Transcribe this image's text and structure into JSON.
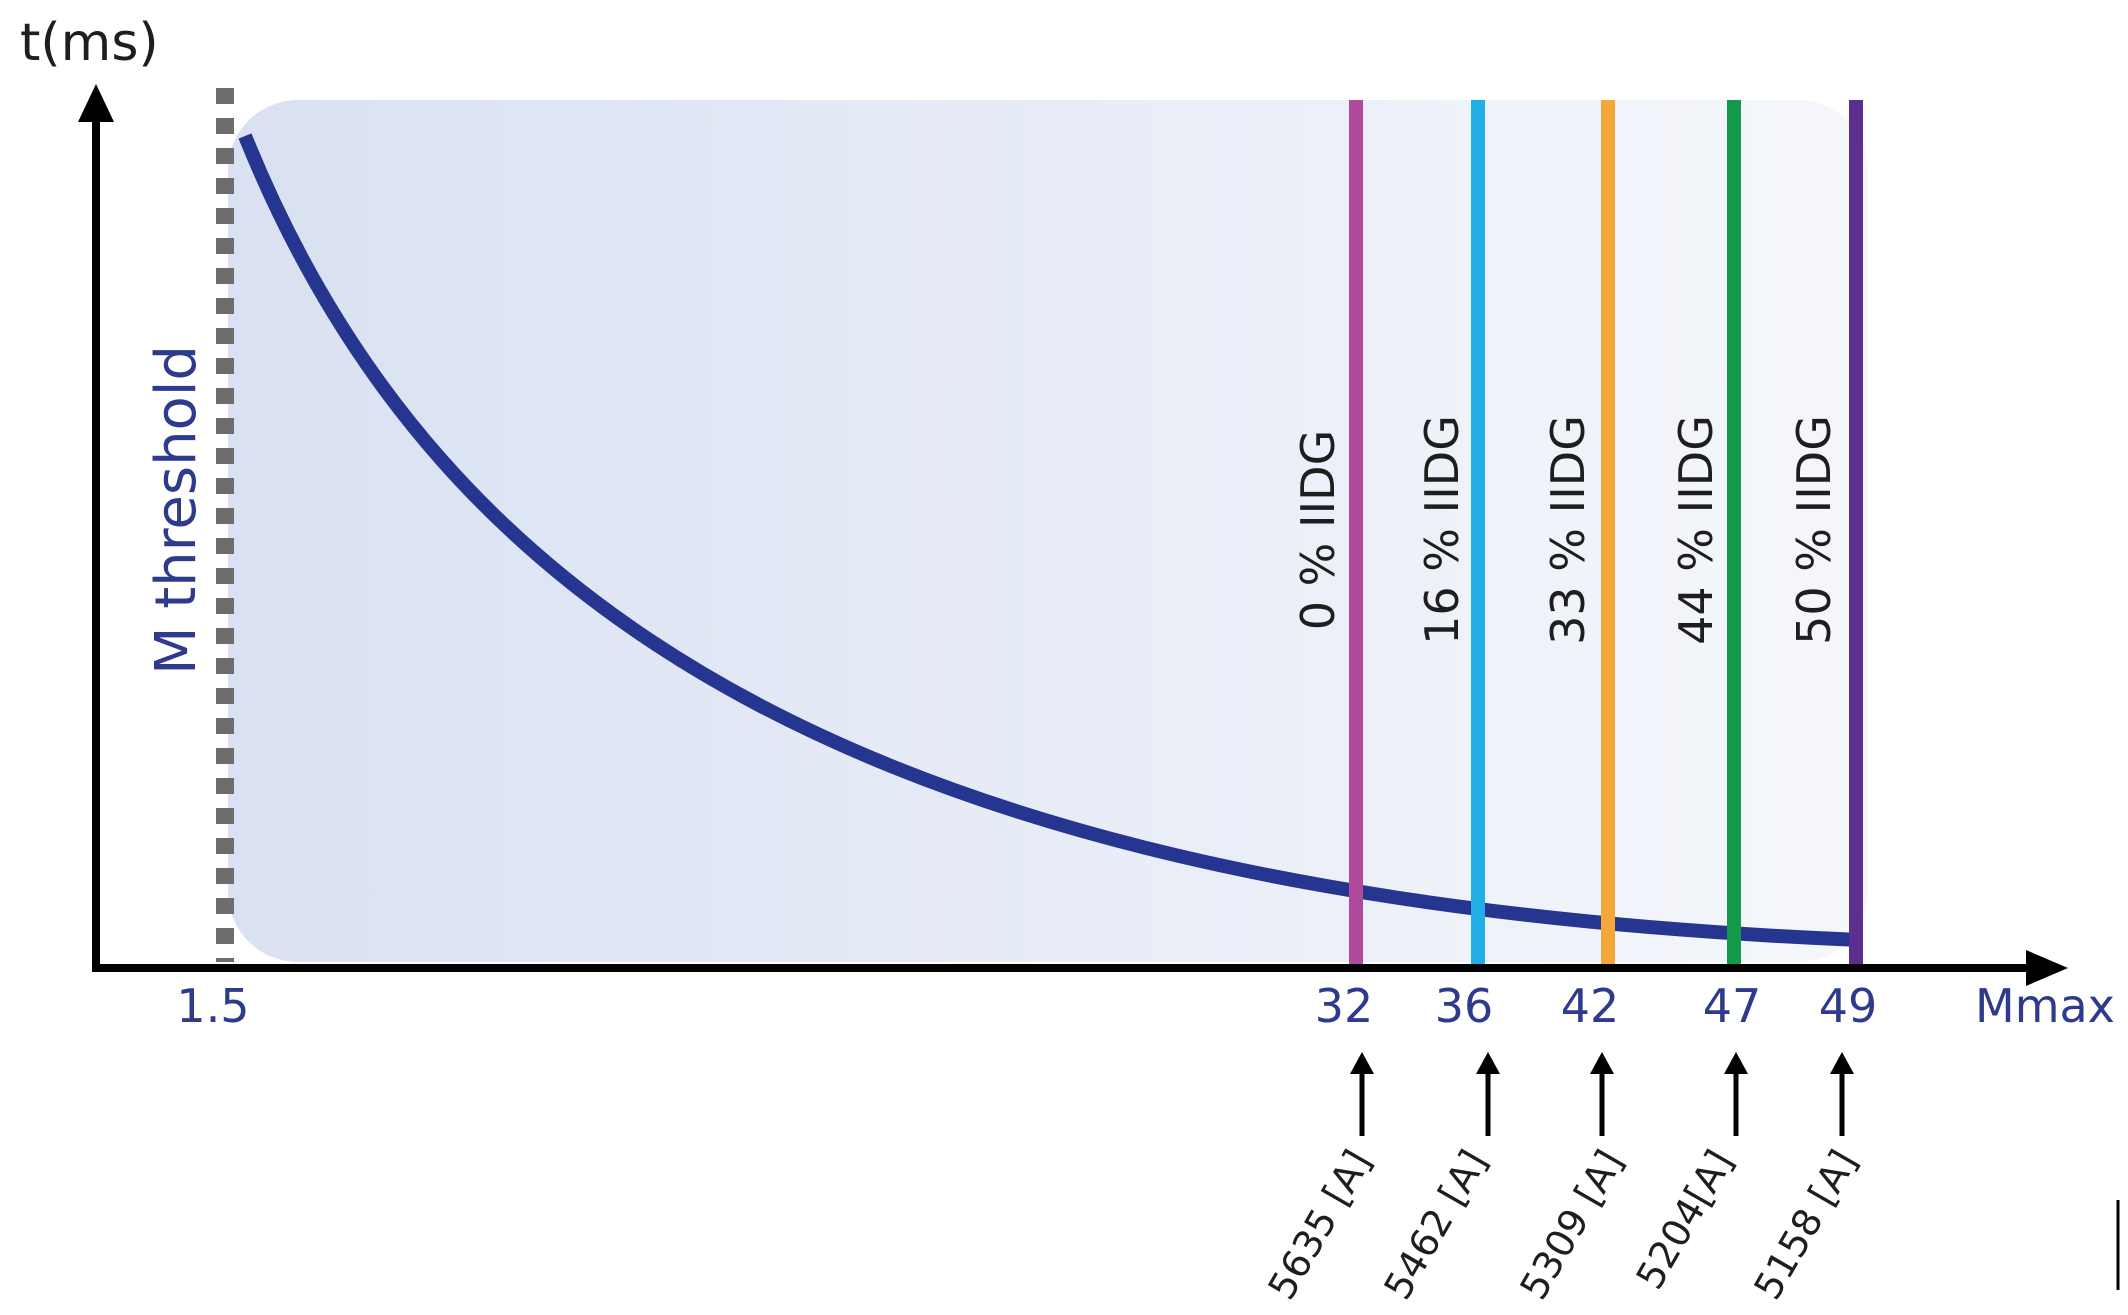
{
  "y_axis_label": "t(ms)",
  "x_axis_label": "Mmax",
  "threshold_label": "M threshold",
  "threshold_value": "1.5",
  "colors": {
    "curve": "#26358f",
    "axis": "#000000",
    "threshold_dash": "#6d6d6d",
    "region_fill": "#dfe6f4",
    "blue_text": "#2e3a8c"
  },
  "markers": [
    {
      "value": "32",
      "label": "0 % IIDG",
      "current": "5635 [A]",
      "color": "#b04a9e"
    },
    {
      "value": "36",
      "label": "16 % IIDG",
      "current": "5462 [A]",
      "color": "#22aee6"
    },
    {
      "value": "42",
      "label": "33 % IIDG",
      "current": "5309 [A]",
      "color": "#f5a83a"
    },
    {
      "value": "47",
      "label": "44 % IIDG",
      "current": "5204[A]",
      "color": "#14994a"
    },
    {
      "value": "49",
      "label": "50 % IIDG",
      "current": "5158 [A]",
      "color": "#5a2f8d"
    }
  ]
}
